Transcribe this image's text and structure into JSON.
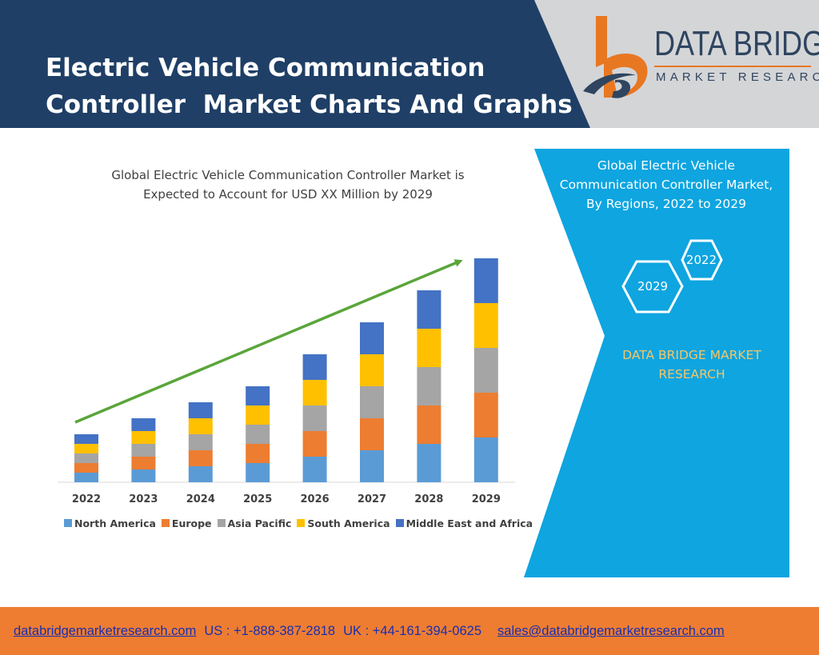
{
  "header": {
    "title_line1": "Electric Vehicle Communication",
    "title_line2": "Controller  Market Charts And Graphs",
    "brand_name": "DATA BRIDGE",
    "brand_sub": "MARKET RESEARCH"
  },
  "colors": {
    "header_dark": "#1f3f66",
    "header_grey": "#d4d5d7",
    "panel_blue": "#0ea5e0",
    "footer_orange": "#ee7d31",
    "trend_arrow": "#5aa53a",
    "logo_orange": "#e87722",
    "logo_navy": "#2f4560"
  },
  "icons": {
    "logo": "data-bridge-logo-icon",
    "hexagon": "hexagon-icon"
  },
  "chart_data": {
    "type": "bar",
    "stacked": true,
    "title_line1": "Global Electric Vehicle Communication Controller Market is",
    "title_line2": "Expected to Account for USD XX Million by 2029",
    "categories": [
      "2022",
      "2023",
      "2024",
      "2025",
      "2026",
      "2027",
      "2028",
      "2029"
    ],
    "series": [
      {
        "name": "North America",
        "color": "#5b9bd5",
        "values": [
          12,
          16,
          20,
          24,
          32,
          40,
          48,
          56
        ]
      },
      {
        "name": "Europe",
        "color": "#ed7d31",
        "values": [
          12,
          16,
          20,
          24,
          32,
          40,
          48,
          56
        ]
      },
      {
        "name": "Asia Pacific",
        "color": "#a5a5a5",
        "values": [
          12,
          16,
          20,
          24,
          32,
          40,
          48,
          56
        ]
      },
      {
        "name": "South America",
        "color": "#ffc000",
        "values": [
          12,
          16,
          20,
          24,
          32,
          40,
          48,
          56
        ]
      },
      {
        "name": "Middle East and Africa",
        "color": "#4472c4",
        "values": [
          12,
          16,
          20,
          24,
          32,
          40,
          48,
          56
        ]
      }
    ],
    "ylim": [
      0,
      280
    ],
    "grid": false,
    "legend_position": "bottom",
    "trend_arrow": true
  },
  "info_panel": {
    "heading_line1": "Global Electric Vehicle",
    "heading_line2": "Communication Controller Market,",
    "heading_line3": "By Regions, 2022 to 2029",
    "hex_year_a": "2022",
    "hex_year_b": "2029",
    "brand_line1": "DATA BRIDGE MARKET",
    "brand_line2": "RESEARCH"
  },
  "footer": {
    "website": "databridgemarketresearch.com",
    "us_phone": "US : +1-888-387-2818",
    "uk_phone": "UK : +44-161-394-0625",
    "email": "sales@databridgemarketresearch.com"
  }
}
